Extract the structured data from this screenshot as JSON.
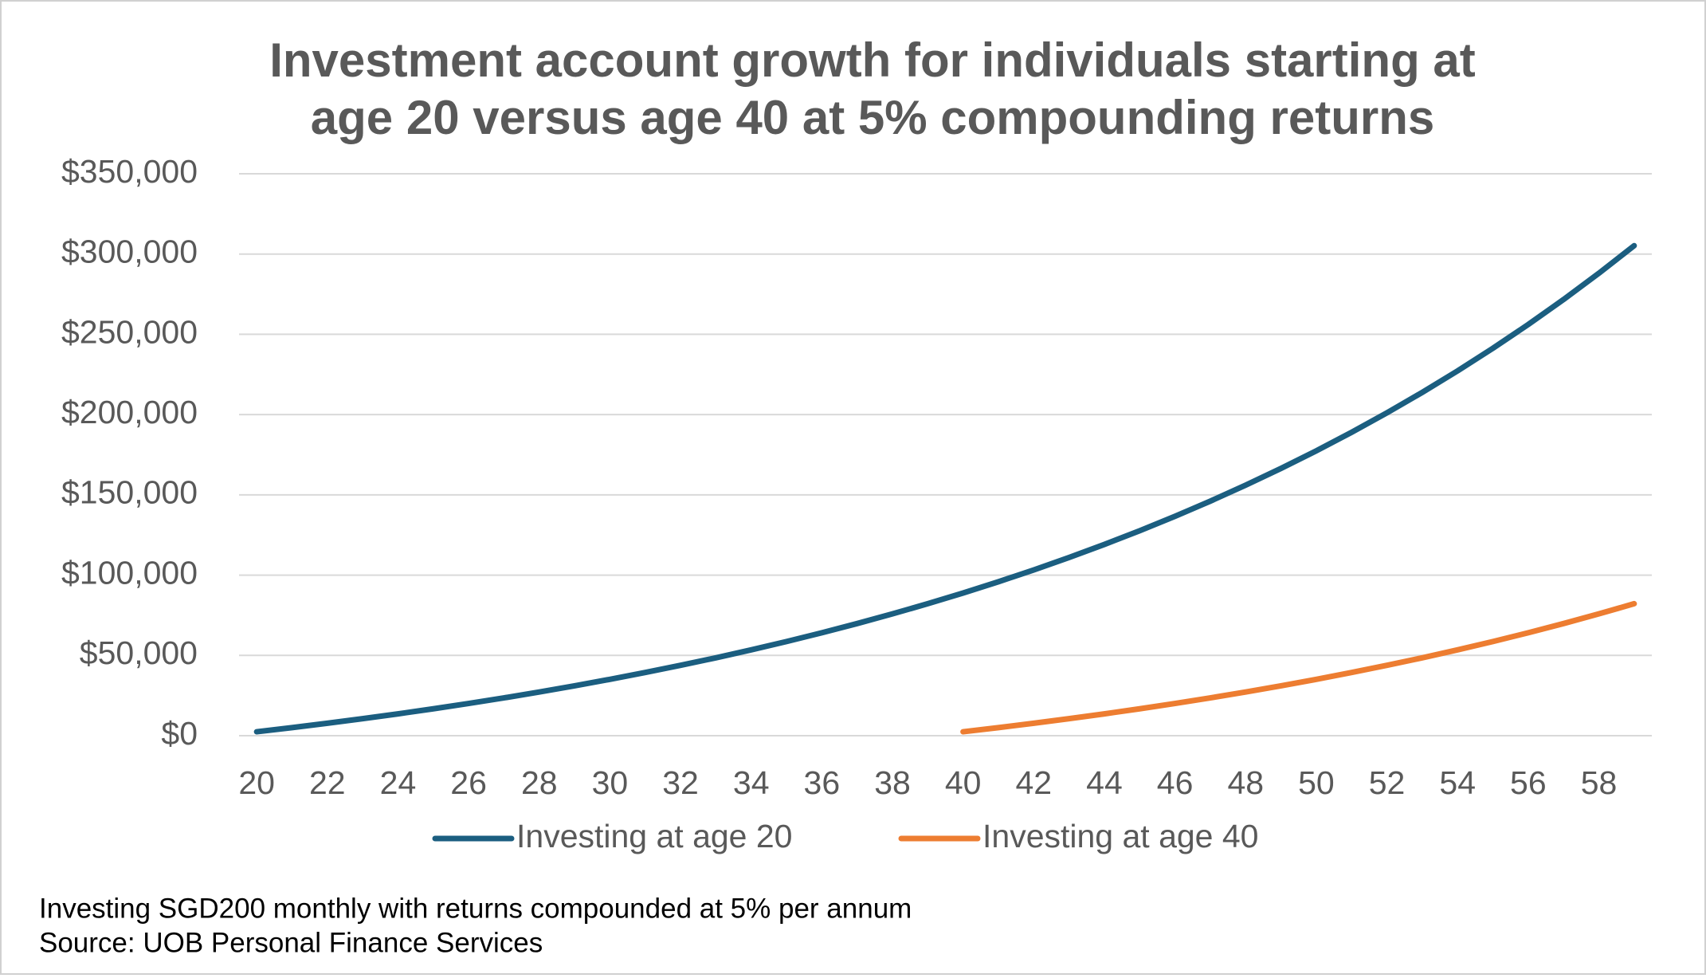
{
  "chart_data": {
    "type": "line",
    "title": [
      "Investment account growth for individuals starting at",
      "age 20 versus age 40 at 5% compounding returns"
    ],
    "notes": [
      "Investing SGD200 monthly with returns compounded at 5% per annum",
      "Source: UOB Personal Finance Services"
    ],
    "xlim": [
      19.5,
      59.5
    ],
    "xticks": [
      20,
      22,
      24,
      26,
      28,
      30,
      32,
      34,
      36,
      38,
      40,
      42,
      44,
      46,
      48,
      50,
      52,
      54,
      56,
      58
    ],
    "ylim": [
      0,
      350000
    ],
    "yticks": [
      {
        "value": 0,
        "label": "$0"
      },
      {
        "value": 50000,
        "label": "$50,000"
      },
      {
        "value": 100000,
        "label": "$100,000"
      },
      {
        "value": 150000,
        "label": "$150,000"
      },
      {
        "value": 200000,
        "label": "$200,000"
      },
      {
        "value": 250000,
        "label": "$250,000"
      },
      {
        "value": 300000,
        "label": "$300,000"
      },
      {
        "value": 350000,
        "label": "$350,000"
      }
    ],
    "grid": true,
    "legend": "bottom",
    "series": [
      {
        "name": "Investing at age 20",
        "color": "#1b5e80",
        "x": [
          20,
          21,
          22,
          23,
          24,
          25,
          26,
          27,
          28,
          29,
          30,
          31,
          32,
          33,
          34,
          35,
          36,
          37,
          38,
          39,
          40,
          41,
          42,
          43,
          44,
          45,
          46,
          47,
          48,
          49,
          50,
          51,
          52,
          53,
          54,
          55,
          56,
          57,
          58,
          59
        ],
        "values": [
          2456,
          5037,
          7751,
          10603,
          13601,
          16753,
          20065,
          23548,
          27208,
          31056,
          35101,
          39353,
          43822,
          48520,
          53458,
          58649,
          64105,
          69841,
          75870,
          82207,
          88869,
          95871,
          103232,
          110970,
          119103,
          127652,
          136639,
          146086,
          156015,
          166453,
          177425,
          188959,
          201082,
          213826,
          227221,
          241302,
          256104,
          271663,
          288017,
          305209
        ]
      },
      {
        "name": "Investing at age 40",
        "color": "#ed7d31",
        "x": [
          40,
          41,
          42,
          43,
          44,
          45,
          46,
          47,
          48,
          49,
          50,
          51,
          52,
          53,
          54,
          55,
          56,
          57,
          58,
          59
        ],
        "values": [
          2456,
          5037,
          7751,
          10603,
          13601,
          16753,
          20065,
          23548,
          27208,
          31056,
          35101,
          39353,
          43822,
          48520,
          53458,
          58649,
          64105,
          69841,
          75870,
          82207
        ]
      }
    ]
  }
}
